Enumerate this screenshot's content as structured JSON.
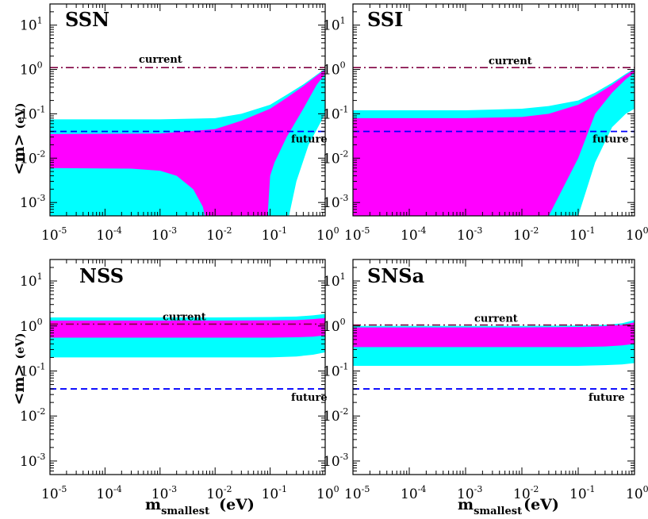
{
  "colors": {
    "outer_band": "#00ffff",
    "inner_band": "#ff00ff",
    "current_line": "#800040",
    "future_line": "#0000ff",
    "frame": "#000000"
  },
  "labels": {
    "ylabel_main": "<m>",
    "ylabel_unit": "(eV)",
    "xlabel_main": "m",
    "xlabel_sub": "smallest",
    "xlabel_unit": "(eV)"
  },
  "chart_data": [
    {
      "type": "area",
      "title": "SSN",
      "xscale": "log",
      "yscale": "log",
      "xlim": [
        1e-05,
        1
      ],
      "ylim": [
        0.0005,
        30
      ],
      "xticks": [
        "-5",
        "-4",
        "-3",
        "-2",
        "-1",
        "0"
      ],
      "yticks": [
        "-3",
        "-2",
        "-1",
        "0",
        "1"
      ],
      "current": {
        "label": "current",
        "y": 1.1
      },
      "future": {
        "label": "future",
        "y": 0.04
      },
      "series": [
        {
          "color": "outer_band",
          "x": [
            1e-05,
            0.001,
            0.01,
            0.03,
            0.1,
            0.2,
            0.4,
            0.7,
            1
          ],
          "upper": [
            0.075,
            0.075,
            0.08,
            0.1,
            0.16,
            0.27,
            0.46,
            0.76,
            1.05
          ],
          "lower_regions": [
            {
              "x": [
                1e-05,
                0.15
              ],
              "y": [
                0.0005,
                0.0005
              ]
            },
            {
              "x": [
                0.22,
                0.3,
                0.5,
                0.8,
                1
              ],
              "y": [
                0.0005,
                0.003,
                0.02,
                0.06,
                0.1
              ]
            }
          ]
        },
        {
          "color": "inner_band",
          "x": [
            1e-05,
            0.001,
            0.01,
            0.03,
            0.1,
            0.2,
            0.4,
            0.7,
            1
          ],
          "upper": [
            0.035,
            0.036,
            0.045,
            0.07,
            0.13,
            0.23,
            0.42,
            0.72,
            1.0
          ],
          "lower": [
            0.006,
            0.0055,
            0.0005,
            0.0005,
            0.006,
            0.03,
            0.13,
            0.45,
            0.8
          ],
          "gap": {
            "from": 0.0065,
            "to": 0.085,
            "lower_at_gap": 0.0005
          }
        }
      ]
    },
    {
      "type": "area",
      "title": "SSI",
      "xscale": "log",
      "yscale": "log",
      "xlim": [
        1e-05,
        1
      ],
      "ylim": [
        0.0005,
        30
      ],
      "xticks": [
        "-5",
        "-4",
        "-3",
        "-2",
        "-1",
        "0"
      ],
      "yticks": [
        "-3",
        "-2",
        "-1",
        "0",
        "1"
      ],
      "current": {
        "label": "current",
        "y": 1.1
      },
      "future": {
        "label": "future",
        "y": 0.04
      },
      "series": [
        {
          "color": "outer_band",
          "x": [
            1e-05,
            0.001,
            0.01,
            0.03,
            0.1,
            0.2,
            0.4,
            0.7,
            1
          ],
          "upper": [
            0.12,
            0.12,
            0.13,
            0.15,
            0.2,
            0.3,
            0.5,
            0.8,
            1.05
          ],
          "lower": [
            0.0005,
            0.0005,
            0.0005,
            0.0005,
            0.0005,
            0.008,
            0.05,
            0.1,
            0.13
          ]
        },
        {
          "color": "inner_band",
          "x": [
            1e-05,
            0.001,
            0.01,
            0.03,
            0.1,
            0.2,
            0.4,
            0.7,
            1
          ],
          "upper": [
            0.08,
            0.08,
            0.085,
            0.1,
            0.16,
            0.26,
            0.45,
            0.75,
            1.0
          ],
          "lower": [
            0.0005,
            0.0005,
            0.0005,
            0.0005,
            0.01,
            0.1,
            0.3,
            0.6,
            0.85
          ]
        }
      ]
    },
    {
      "type": "area",
      "title": "NSS",
      "xscale": "log",
      "yscale": "log",
      "xlim": [
        1e-05,
        1
      ],
      "ylim": [
        0.0005,
        30
      ],
      "xticks": [
        "-5",
        "-4",
        "-3",
        "-2",
        "-1",
        "0"
      ],
      "yticks": [
        "-3",
        "-2",
        "-1",
        "0",
        "1"
      ],
      "current": {
        "label": "current",
        "y": 1.1
      },
      "future": {
        "label": "future",
        "y": 0.04
      },
      "series": [
        {
          "color": "outer_band",
          "x": [
            1e-05,
            0.01,
            0.1,
            0.3,
            0.6,
            1
          ],
          "upper": [
            1.55,
            1.55,
            1.58,
            1.62,
            1.72,
            1.85
          ],
          "lower": [
            0.2,
            0.2,
            0.2,
            0.21,
            0.23,
            0.26
          ]
        },
        {
          "color": "inner_band",
          "x": [
            1e-05,
            0.01,
            0.1,
            0.3,
            0.6,
            1
          ],
          "upper": [
            1.32,
            1.32,
            1.33,
            1.35,
            1.42,
            1.5
          ],
          "lower": [
            0.55,
            0.55,
            0.55,
            0.56,
            0.58,
            0.62
          ]
        }
      ]
    },
    {
      "type": "area",
      "title": "SNSa",
      "xscale": "log",
      "yscale": "log",
      "xlim": [
        1e-05,
        1
      ],
      "ylim": [
        0.0005,
        30
      ],
      "xticks": [
        "-5",
        "-4",
        "-3",
        "-2",
        "-1",
        "0"
      ],
      "yticks": [
        "-3",
        "-2",
        "-1",
        "0",
        "1"
      ],
      "current": {
        "label": "current",
        "y": 1.05
      },
      "future": {
        "label": "future",
        "y": 0.04
      },
      "series": [
        {
          "color": "outer_band",
          "x": [
            1e-05,
            0.01,
            0.1,
            0.3,
            0.6,
            1
          ],
          "upper": [
            1.0,
            1.0,
            1.02,
            1.06,
            1.15,
            1.35
          ],
          "lower": [
            0.13,
            0.13,
            0.13,
            0.135,
            0.14,
            0.15
          ]
        },
        {
          "color": "inner_band",
          "x": [
            1e-05,
            0.01,
            0.1,
            0.3,
            0.6,
            1
          ],
          "upper": [
            0.93,
            0.93,
            0.95,
            0.99,
            1.06,
            1.2
          ],
          "lower": [
            0.34,
            0.34,
            0.34,
            0.35,
            0.37,
            0.4
          ]
        }
      ]
    }
  ]
}
